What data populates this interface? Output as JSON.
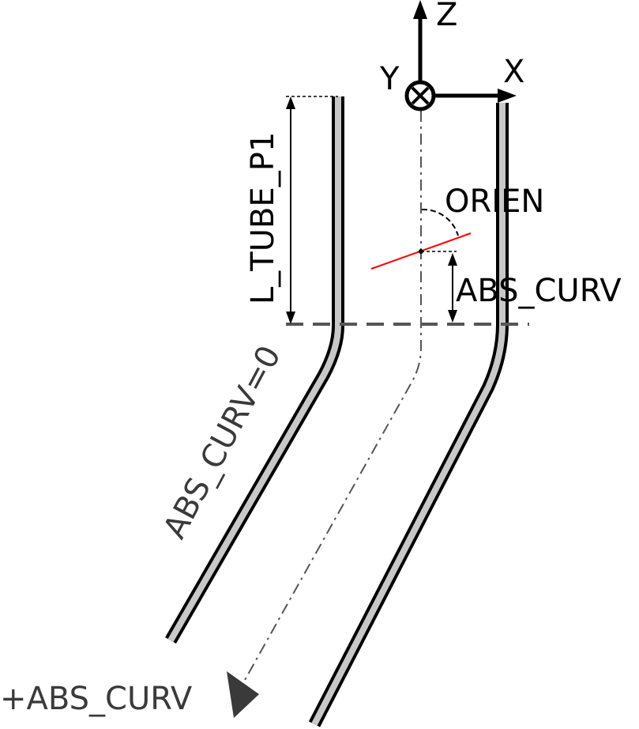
{
  "axes": {
    "z_label": "Z",
    "x_label": "X",
    "y_label": "Y"
  },
  "labels": {
    "orien": "ORIEN",
    "abs_curv": "ABS_CURV",
    "l_tube_p1": "L_TUBE_P1",
    "abs_curv_zero": "ABS_CURV=0",
    "plus_abs_curv": "+ABS_CURV"
  },
  "colors": {
    "tube_fill": "#c8c8c8",
    "tube_edge": "#000000",
    "section_line": "#ff0000",
    "centerline": "#555555",
    "reference_line": "#555555"
  }
}
